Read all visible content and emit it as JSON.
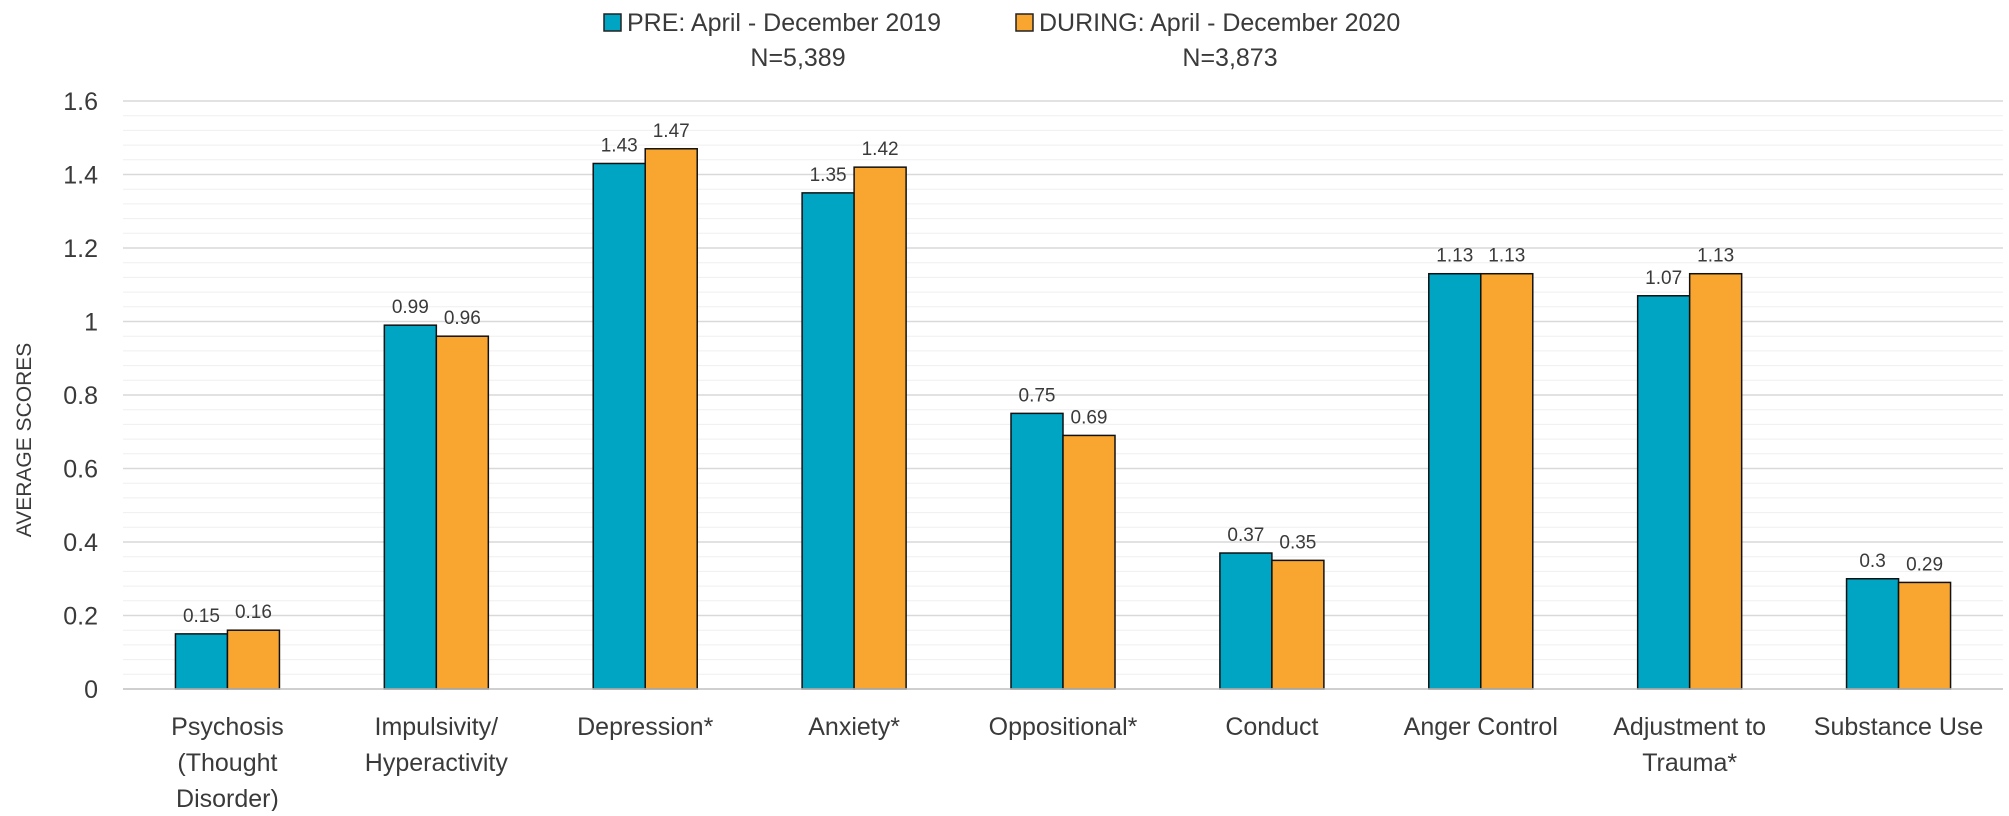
{
  "chart_data": {
    "type": "bar",
    "ylabel": "AVERAGE SCORES",
    "xlabel": "",
    "ylim": [
      0,
      1.6
    ],
    "yticks": [
      "0",
      "0.2",
      "0.4",
      "0.6",
      "0.8",
      "1",
      "1.2",
      "1.4",
      "1.6"
    ],
    "grid": true,
    "legend_position": "top-center",
    "categories": [
      [
        "Psychosis",
        "(Thought",
        "Disorder)"
      ],
      [
        "Impulsivity/",
        "Hyperactivity"
      ],
      [
        "Depression*"
      ],
      [
        "Anxiety*"
      ],
      [
        "Oppositional*"
      ],
      [
        "Conduct"
      ],
      [
        "Anger Control"
      ],
      [
        "Adjustment to",
        "Trauma*"
      ],
      [
        "Substance Use"
      ]
    ],
    "series": [
      {
        "name": "PRE: April - December 2019",
        "subtitle": "N=5,389",
        "color": "#00A5C4",
        "values": [
          0.15,
          0.99,
          1.43,
          1.35,
          0.75,
          0.37,
          1.13,
          1.07,
          0.3
        ],
        "labels": [
          "0.15",
          "0.99",
          "1.43",
          "1.35",
          "0.75",
          "0.37",
          "1.13",
          "1.07",
          "0.3"
        ]
      },
      {
        "name": "DURING: April - December 2020",
        "subtitle": "N=3,873",
        "color": "#F9A631",
        "values": [
          0.16,
          0.96,
          1.47,
          1.42,
          0.69,
          0.35,
          1.13,
          1.13,
          0.29
        ],
        "labels": [
          "0.16",
          "0.96",
          "1.47",
          "1.42",
          "0.69",
          "0.35",
          "1.13",
          "1.13",
          "0.29"
        ]
      }
    ]
  }
}
